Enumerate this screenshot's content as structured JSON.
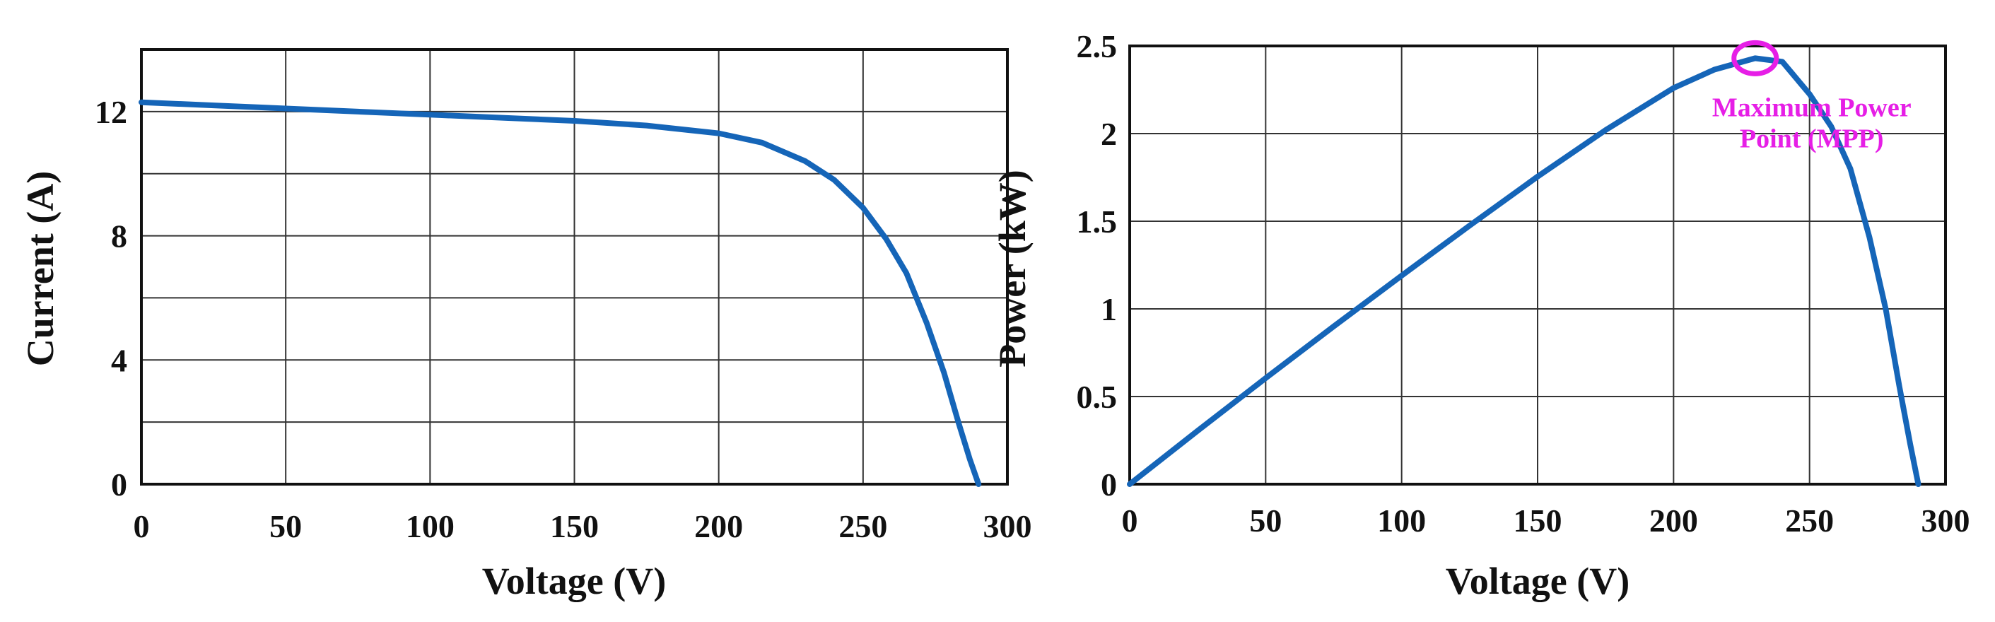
{
  "chart_data": [
    {
      "type": "line",
      "title": "",
      "xlabel": "Voltage (V)",
      "ylabel": "Current (A)",
      "xlim": [
        0,
        300
      ],
      "ylim": [
        0,
        14
      ],
      "x_ticks": [
        "0",
        "50",
        "100",
        "150",
        "200",
        "250",
        "300"
      ],
      "y_ticks": [
        "0",
        "4",
        "8",
        "12"
      ],
      "grid": true,
      "color": "#1565b8",
      "series": [
        {
          "x": [
            0,
            25,
            50,
            75,
            100,
            125,
            150,
            175,
            200,
            215,
            230,
            240,
            250,
            258,
            265,
            272,
            278,
            283,
            287,
            290
          ],
          "y": [
            12.3,
            12.2,
            12.1,
            12.0,
            11.9,
            11.8,
            11.7,
            11.55,
            11.3,
            11.0,
            10.4,
            9.8,
            8.9,
            7.9,
            6.8,
            5.2,
            3.6,
            2.0,
            0.8,
            0
          ]
        }
      ]
    },
    {
      "type": "line",
      "title": "",
      "xlabel": "Voltage (V)",
      "ylabel": "Power (kW)",
      "xlim": [
        0,
        300
      ],
      "ylim": [
        0,
        2.5
      ],
      "x_ticks": [
        "0",
        "50",
        "100",
        "150",
        "200",
        "250",
        "300"
      ],
      "y_ticks": [
        "0",
        "0.5",
        "1",
        "1.5",
        "2",
        "2.5"
      ],
      "grid": true,
      "color": "#1565b8",
      "series": [
        {
          "x": [
            0,
            25,
            50,
            75,
            100,
            125,
            150,
            175,
            200,
            215,
            230,
            240,
            250,
            258,
            265,
            272,
            278,
            283,
            287,
            290
          ],
          "y": [
            0,
            0.305,
            0.605,
            0.9,
            1.19,
            1.475,
            1.755,
            2.02,
            2.26,
            2.365,
            2.43,
            2.41,
            2.225,
            2.04,
            1.8,
            1.41,
            1.0,
            0.56,
            0.23,
            0
          ]
        }
      ],
      "annotation": {
        "text_lines": [
          "Maximum Power",
          "Point (MPP)"
        ],
        "x": 230,
        "y": 2.43,
        "color": "#e61ee6"
      }
    }
  ]
}
